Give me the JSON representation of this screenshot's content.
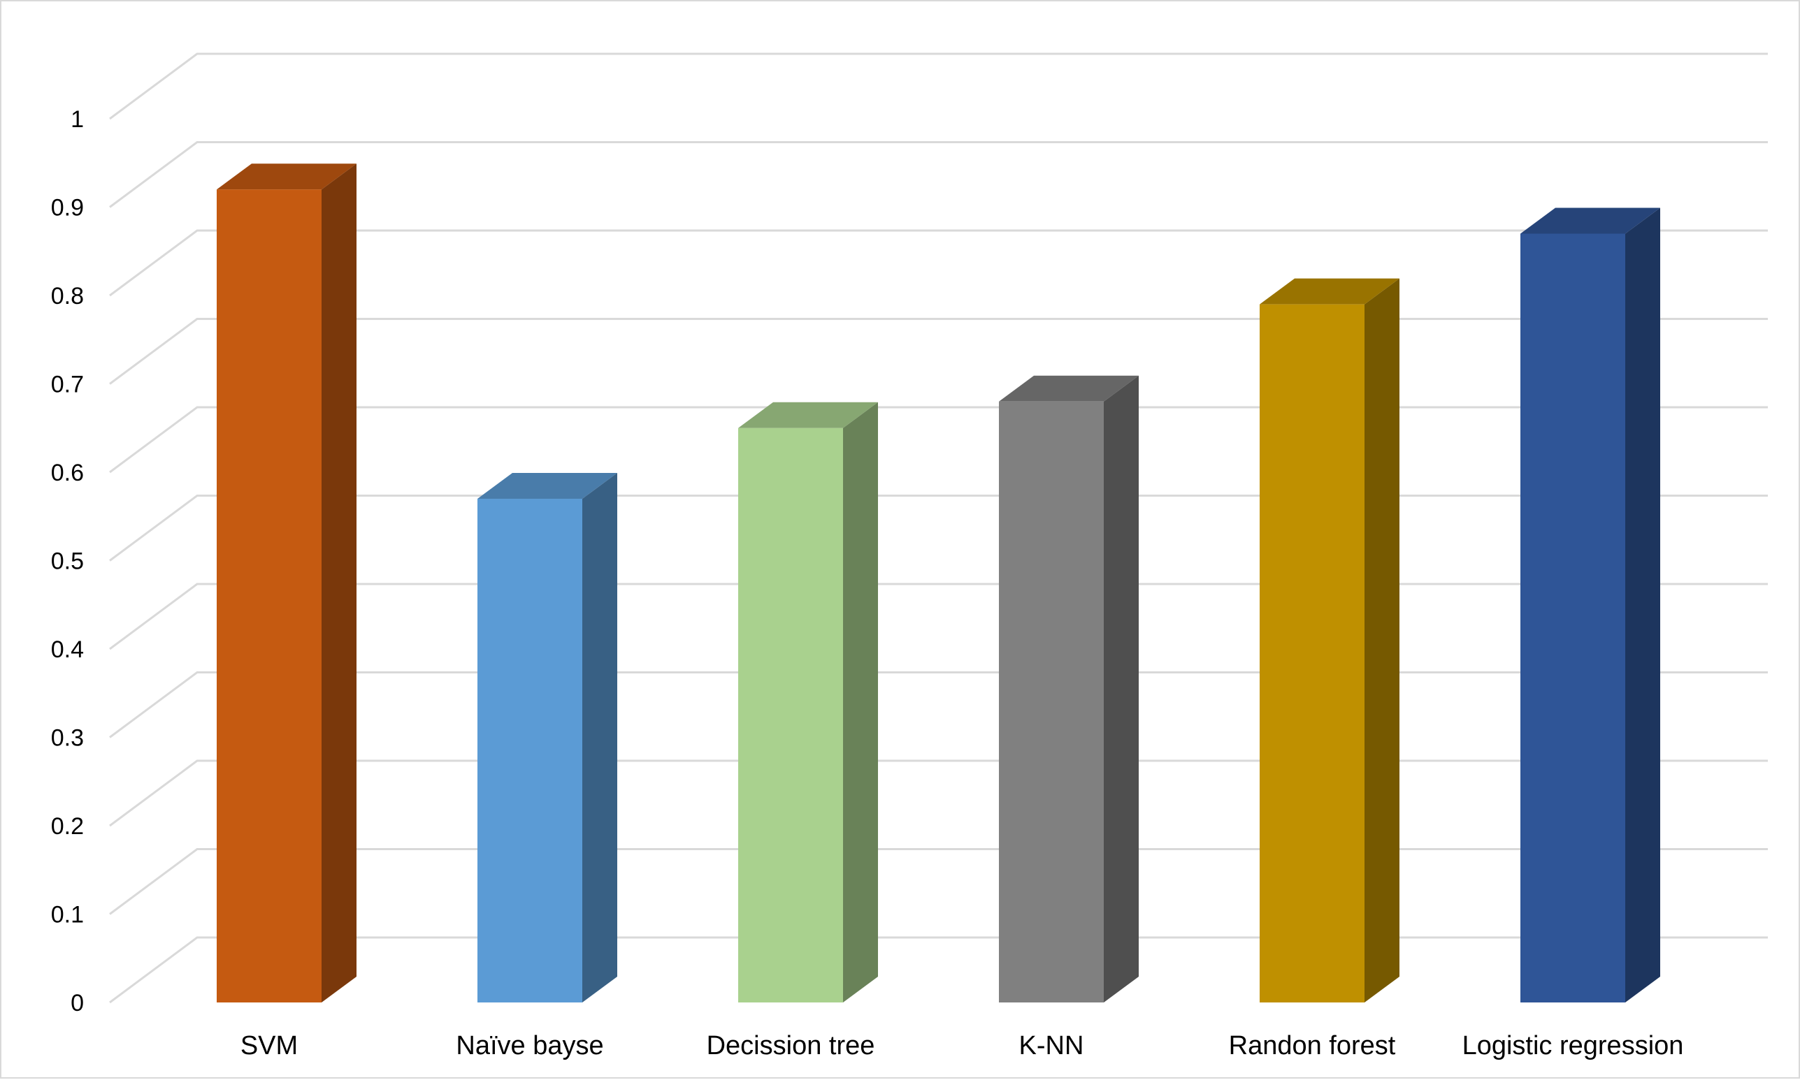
{
  "chart_data": {
    "type": "bar",
    "style": "3d-column",
    "categories": [
      "SVM",
      "Naïve bayse",
      "Decission tree",
      "K-NN",
      "Randon forest",
      "Logistic regression"
    ],
    "values": [
      0.92,
      0.57,
      0.65,
      0.68,
      0.79,
      0.87
    ],
    "colors": [
      "#c55a11",
      "#5b9bd5",
      "#a9d18e",
      "#808080",
      "#bf9000",
      "#2f5597"
    ],
    "yticks": [
      "0",
      "0.1",
      "0.2",
      "0.3",
      "0.4",
      "0.5",
      "0.6",
      "0.7",
      "0.8",
      "0.9",
      "1"
    ],
    "ylim": [
      0,
      1
    ],
    "title": "",
    "xlabel": "",
    "ylabel": "",
    "grid": true,
    "legend": "none"
  }
}
